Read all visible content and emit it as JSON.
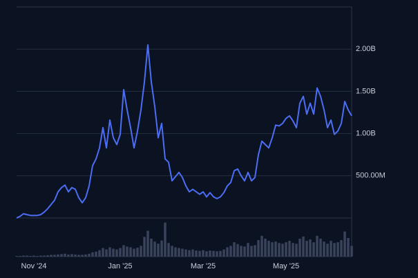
{
  "chart_data": {
    "type": "line",
    "categories": [
      null,
      null,
      null,
      null,
      null,
      "Nov '24",
      null,
      null,
      null,
      null,
      null,
      null,
      null,
      null,
      null,
      null,
      null,
      null,
      null,
      null,
      null,
      null,
      null,
      null,
      null,
      null,
      null,
      null,
      null,
      null,
      "Jan '25",
      null,
      null,
      null,
      null,
      null,
      null,
      null,
      null,
      null,
      null,
      null,
      null,
      null,
      null,
      null,
      null,
      null,
      null,
      null,
      null,
      null,
      null,
      null,
      "Mar '25",
      null,
      null,
      null,
      null,
      null,
      null,
      null,
      null,
      null,
      null,
      null,
      null,
      null,
      null,
      null,
      null,
      null,
      null,
      null,
      null,
      null,
      null,
      null,
      "May '25",
      null,
      null,
      null,
      null,
      null,
      null,
      null,
      null,
      null,
      null,
      null,
      null,
      null,
      null,
      null,
      null,
      null,
      null,
      null
    ],
    "series": [
      {
        "color": "#4c6ef5",
        "values": [
          0.0,
          0.02,
          0.05,
          0.04,
          0.03,
          0.03,
          0.03,
          0.04,
          0.07,
          0.11,
          0.16,
          0.21,
          0.31,
          0.36,
          0.39,
          0.31,
          0.36,
          0.34,
          0.24,
          0.18,
          0.24,
          0.38,
          0.62,
          0.7,
          0.83,
          1.07,
          0.83,
          1.16,
          0.95,
          0.87,
          0.99,
          1.52,
          1.28,
          1.07,
          0.83,
          1.03,
          1.28,
          1.61,
          2.05,
          1.61,
          1.32,
          0.95,
          1.12,
          0.7,
          0.66,
          0.44,
          0.49,
          0.54,
          0.48,
          0.38,
          0.31,
          0.34,
          0.31,
          0.28,
          0.31,
          0.25,
          0.3,
          0.25,
          0.23,
          0.25,
          0.3,
          0.38,
          0.42,
          0.56,
          0.58,
          0.5,
          0.44,
          0.54,
          0.44,
          0.48,
          0.75,
          0.91,
          0.87,
          0.83,
          0.95,
          1.1,
          1.09,
          1.12,
          1.18,
          1.21,
          1.15,
          1.07,
          1.36,
          1.44,
          1.23,
          1.36,
          1.23,
          1.54,
          1.44,
          1.28,
          1.07,
          1.16,
          0.99,
          1.03,
          1.12,
          1.38,
          1.28,
          1.21
        ]
      },
      {
        "type": "bar",
        "axis": "y2",
        "color": "#3a435c",
        "values": [
          0.02,
          0.02,
          0.03,
          0.03,
          0.02,
          0.03,
          0.02,
          0.03,
          0.03,
          0.04,
          0.05,
          0.05,
          0.06,
          0.07,
          0.08,
          0.06,
          0.07,
          0.06,
          0.05,
          0.05,
          0.06,
          0.08,
          0.12,
          0.14,
          0.18,
          0.24,
          0.2,
          0.26,
          0.22,
          0.2,
          0.24,
          0.32,
          0.28,
          0.26,
          0.22,
          0.25,
          0.3,
          0.55,
          0.72,
          0.5,
          0.42,
          0.36,
          0.45,
          0.95,
          0.38,
          0.3,
          0.26,
          0.24,
          0.22,
          0.2,
          0.18,
          0.2,
          0.17,
          0.16,
          0.18,
          0.15,
          0.17,
          0.16,
          0.15,
          0.16,
          0.2,
          0.26,
          0.3,
          0.4,
          0.35,
          0.3,
          0.28,
          0.38,
          0.3,
          0.32,
          0.46,
          0.58,
          0.5,
          0.44,
          0.4,
          0.42,
          0.38,
          0.36,
          0.4,
          0.44,
          0.38,
          0.36,
          0.5,
          0.56,
          0.44,
          0.48,
          0.4,
          0.58,
          0.5,
          0.42,
          0.36,
          0.44,
          0.38,
          0.4,
          0.46,
          0.7,
          0.52,
          0.3
        ]
      }
    ],
    "ylim": [
      0,
      2.5
    ],
    "yticks": [
      {
        "value": 0.5,
        "label": "500.00M"
      },
      {
        "value": 1,
        "label": "1.00B"
      },
      {
        "value": 1.5,
        "label": "1.50B"
      },
      {
        "value": 2,
        "label": "2.00B"
      }
    ],
    "y2lim": [
      0,
      1
    ],
    "grid": true
  }
}
